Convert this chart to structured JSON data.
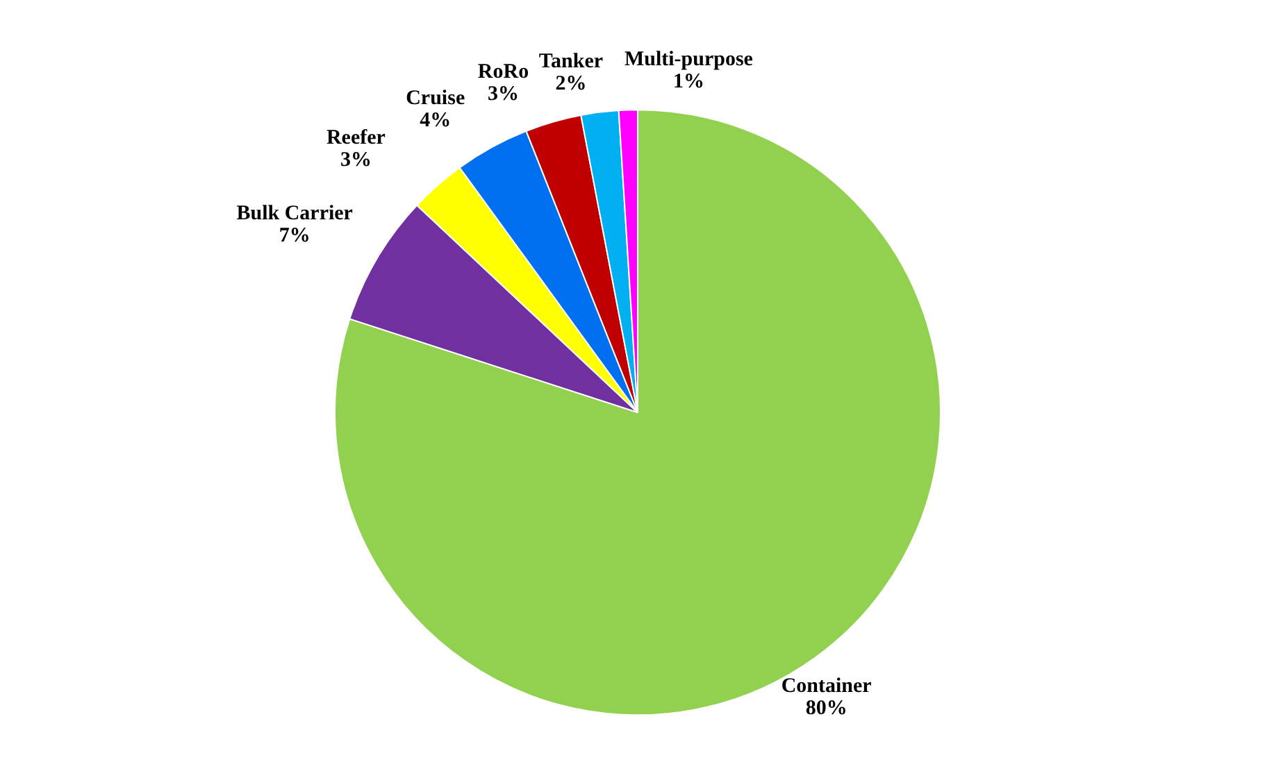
{
  "chart_data": {
    "type": "pie",
    "categories": [
      "Container",
      "Bulk Carrier",
      "Reefer",
      "Cruise",
      "RoRo",
      "Tanker",
      "Multi-purpose"
    ],
    "values": [
      80,
      7,
      3,
      4,
      3,
      2,
      1
    ],
    "value_labels": [
      "80%",
      "7%",
      "3%",
      "4%",
      "3%",
      "2%",
      "1%"
    ],
    "colors": [
      "#92d050",
      "#7030a0",
      "#ffff00",
      "#0070f0",
      "#c00000",
      "#00b0f0",
      "#ff00ff"
    ],
    "legend": false
  }
}
